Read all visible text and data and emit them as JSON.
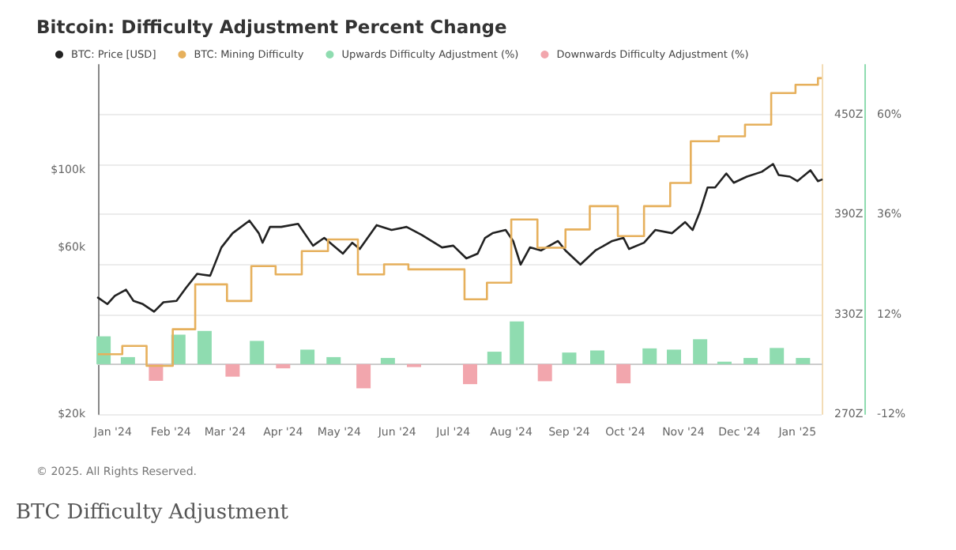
{
  "chart_data": {
    "type": "line",
    "title": "Bitcoin: Difficulty Adjustment Percent Change",
    "annotations": [
      "© 2025. All Rights Reserved.",
      "BTC Difficulty Adjustment"
    ],
    "xlim": [
      "2023-12-24",
      "2025-01-14"
    ],
    "xticks": [
      {
        "value": "2024-01-01",
        "label": "Jan '24"
      },
      {
        "value": "2024-02-01",
        "label": "Feb '24"
      },
      {
        "value": "2024-03-01",
        "label": "Mar '24"
      },
      {
        "value": "2024-04-01",
        "label": "Apr '24"
      },
      {
        "value": "2024-05-01",
        "label": "May '24"
      },
      {
        "value": "2024-06-01",
        "label": "Jun '24"
      },
      {
        "value": "2024-07-01",
        "label": "Jul '24"
      },
      {
        "value": "2024-08-01",
        "label": "Aug '24"
      },
      {
        "value": "2024-09-01",
        "label": "Sep '24"
      },
      {
        "value": "2024-10-01",
        "label": "Oct '24"
      },
      {
        "value": "2024-11-01",
        "label": "Nov '24"
      },
      {
        "value": "2024-12-01",
        "label": "Dec '24"
      },
      {
        "value": "2025-01-01",
        "label": "Jan '25"
      }
    ],
    "log": "y",
    "ylim": [
      20000,
      200000
    ],
    "yticks": [
      {
        "value": 20000,
        "label": "$20k"
      },
      {
        "value": 60000,
        "label": "$60k"
      },
      {
        "value": 100000,
        "label": "$100k"
      }
    ],
    "y2lim": [
      270,
      480
    ],
    "y2ticks": [
      {
        "value": 270,
        "label": "270Z"
      },
      {
        "value": 300,
        "label": null
      },
      {
        "value": 330,
        "label": "330Z"
      },
      {
        "value": 360,
        "label": null
      },
      {
        "value": 390,
        "label": "390Z"
      },
      {
        "value": 420,
        "label": null
      },
      {
        "value": 450,
        "label": "450Z"
      }
    ],
    "y3lim": [
      -12,
      72
    ],
    "y3ticks": [
      {
        "value": -12,
        "label": "-12%"
      },
      {
        "value": 12,
        "label": "12%"
      },
      {
        "value": 36,
        "label": "36%"
      },
      {
        "value": 60,
        "label": "60%"
      }
    ],
    "grid": "y",
    "legend": "top left",
    "marker": "none",
    "series": [
      {
        "name": "BTC: Price [USD]",
        "color": "#222222",
        "x": [
          "2023-12-24",
          "2023-12-29",
          "2024-01-02",
          "2024-01-08",
          "2024-01-12",
          "2024-01-17",
          "2024-01-23",
          "2024-01-28",
          "2024-02-04",
          "2024-02-09",
          "2024-02-15",
          "2024-02-22",
          "2024-02-28",
          "2024-03-05",
          "2024-03-14",
          "2024-03-19",
          "2024-03-21",
          "2024-03-25",
          "2024-03-31",
          "2024-04-09",
          "2024-04-17",
          "2024-04-23",
          "2024-05-03",
          "2024-05-08",
          "2024-05-12",
          "2024-05-21",
          "2024-05-29",
          "2024-06-06",
          "2024-06-14",
          "2024-06-25",
          "2024-07-01",
          "2024-07-08",
          "2024-07-14",
          "2024-07-18",
          "2024-07-22",
          "2024-07-29",
          "2024-08-02",
          "2024-08-06",
          "2024-08-11",
          "2024-08-17",
          "2024-08-26",
          "2024-08-30",
          "2024-09-07",
          "2024-09-15",
          "2024-09-24",
          "2024-09-30",
          "2024-10-03",
          "2024-10-11",
          "2024-10-17",
          "2024-10-26",
          "2024-11-02",
          "2024-11-06",
          "2024-11-10",
          "2024-11-14",
          "2024-11-18",
          "2024-11-24",
          "2024-11-28",
          "2024-12-05",
          "2024-12-13",
          "2024-12-19",
          "2024-12-22",
          "2024-12-28",
          "2025-01-01",
          "2025-01-08",
          "2025-01-12",
          "2025-01-14"
        ],
        "values": [
          43100,
          41300,
          43600,
          45400,
          42200,
          41300,
          39300,
          41800,
          42200,
          45900,
          50400,
          49800,
          60000,
          65900,
          71600,
          65900,
          61900,
          68700,
          68700,
          70100,
          60700,
          63900,
          57600,
          61900,
          59400,
          69500,
          67300,
          68700,
          65200,
          60000,
          60700,
          55800,
          57600,
          63900,
          65900,
          67300,
          62600,
          53600,
          60000,
          58800,
          62600,
          58800,
          53600,
          58800,
          62600,
          63900,
          59400,
          61900,
          67300,
          65900,
          70900,
          67300,
          76200,
          89100,
          89100,
          97700,
          91900,
          95700,
          98800,
          104000,
          96700,
          95700,
          92900,
          99800,
          92900,
          93800
        ]
      },
      {
        "name": "BTC: Mining Difficulty",
        "type": "step",
        "axis": "y2",
        "color": "#e6b05c",
        "x": [
          "2023-12-24",
          "2024-01-06",
          "2024-01-19",
          "2024-02-02",
          "2024-02-14",
          "2024-03-02",
          "2024-03-15",
          "2024-03-28",
          "2024-04-11",
          "2024-04-25",
          "2024-05-11",
          "2024-05-25",
          "2024-06-07",
          "2024-07-07",
          "2024-07-19",
          "2024-08-01",
          "2024-08-15",
          "2024-08-30",
          "2024-09-12",
          "2024-09-27",
          "2024-10-11",
          "2024-10-25",
          "2024-11-05",
          "2024-11-20",
          "2024-12-04",
          "2024-12-18",
          "2024-12-31",
          "2025-01-12",
          "2025-01-14"
        ],
        "values": [
          306,
          311,
          299,
          321,
          348,
          338,
          359,
          354,
          368,
          375,
          354,
          360,
          357,
          339,
          349,
          387,
          370,
          381,
          395,
          377,
          395,
          409,
          434,
          437,
          444,
          463,
          468,
          472,
          472
        ]
      },
      {
        "name": "Upwards Difficulty Adjustment (%)",
        "type": "bar",
        "axis": "y3",
        "color": "#8fdcb0",
        "x": [
          "2023-12-27",
          "2024-01-09",
          "2024-02-05",
          "2024-02-19",
          "2024-03-18",
          "2024-04-14",
          "2024-04-28",
          "2024-05-27",
          "2024-07-23",
          "2024-08-04",
          "2024-09-01",
          "2024-09-16",
          "2024-10-14",
          "2024-10-27",
          "2024-11-10",
          "2024-11-23",
          "2024-12-07",
          "2024-12-21",
          "2025-01-04"
        ],
        "values": [
          6.7,
          1.7,
          7.1,
          8.0,
          5.6,
          3.5,
          1.7,
          1.5,
          3.0,
          10.3,
          2.8,
          3.3,
          3.8,
          3.5,
          6.0,
          0.6,
          1.5,
          3.9,
          1.5
        ]
      },
      {
        "name": "Downwards Difficulty Adjustment (%)",
        "type": "bar",
        "axis": "y3",
        "color": "#f2a6ad",
        "x": [
          "2024-01-24",
          "2024-03-05",
          "2024-04-01",
          "2024-05-14",
          "2024-06-10",
          "2024-07-10",
          "2024-08-19",
          "2024-09-30"
        ],
        "values": [
          -4.0,
          -3.0,
          -1.0,
          -5.8,
          -0.7,
          -4.8,
          -4.1,
          -4.6
        ]
      }
    ]
  }
}
